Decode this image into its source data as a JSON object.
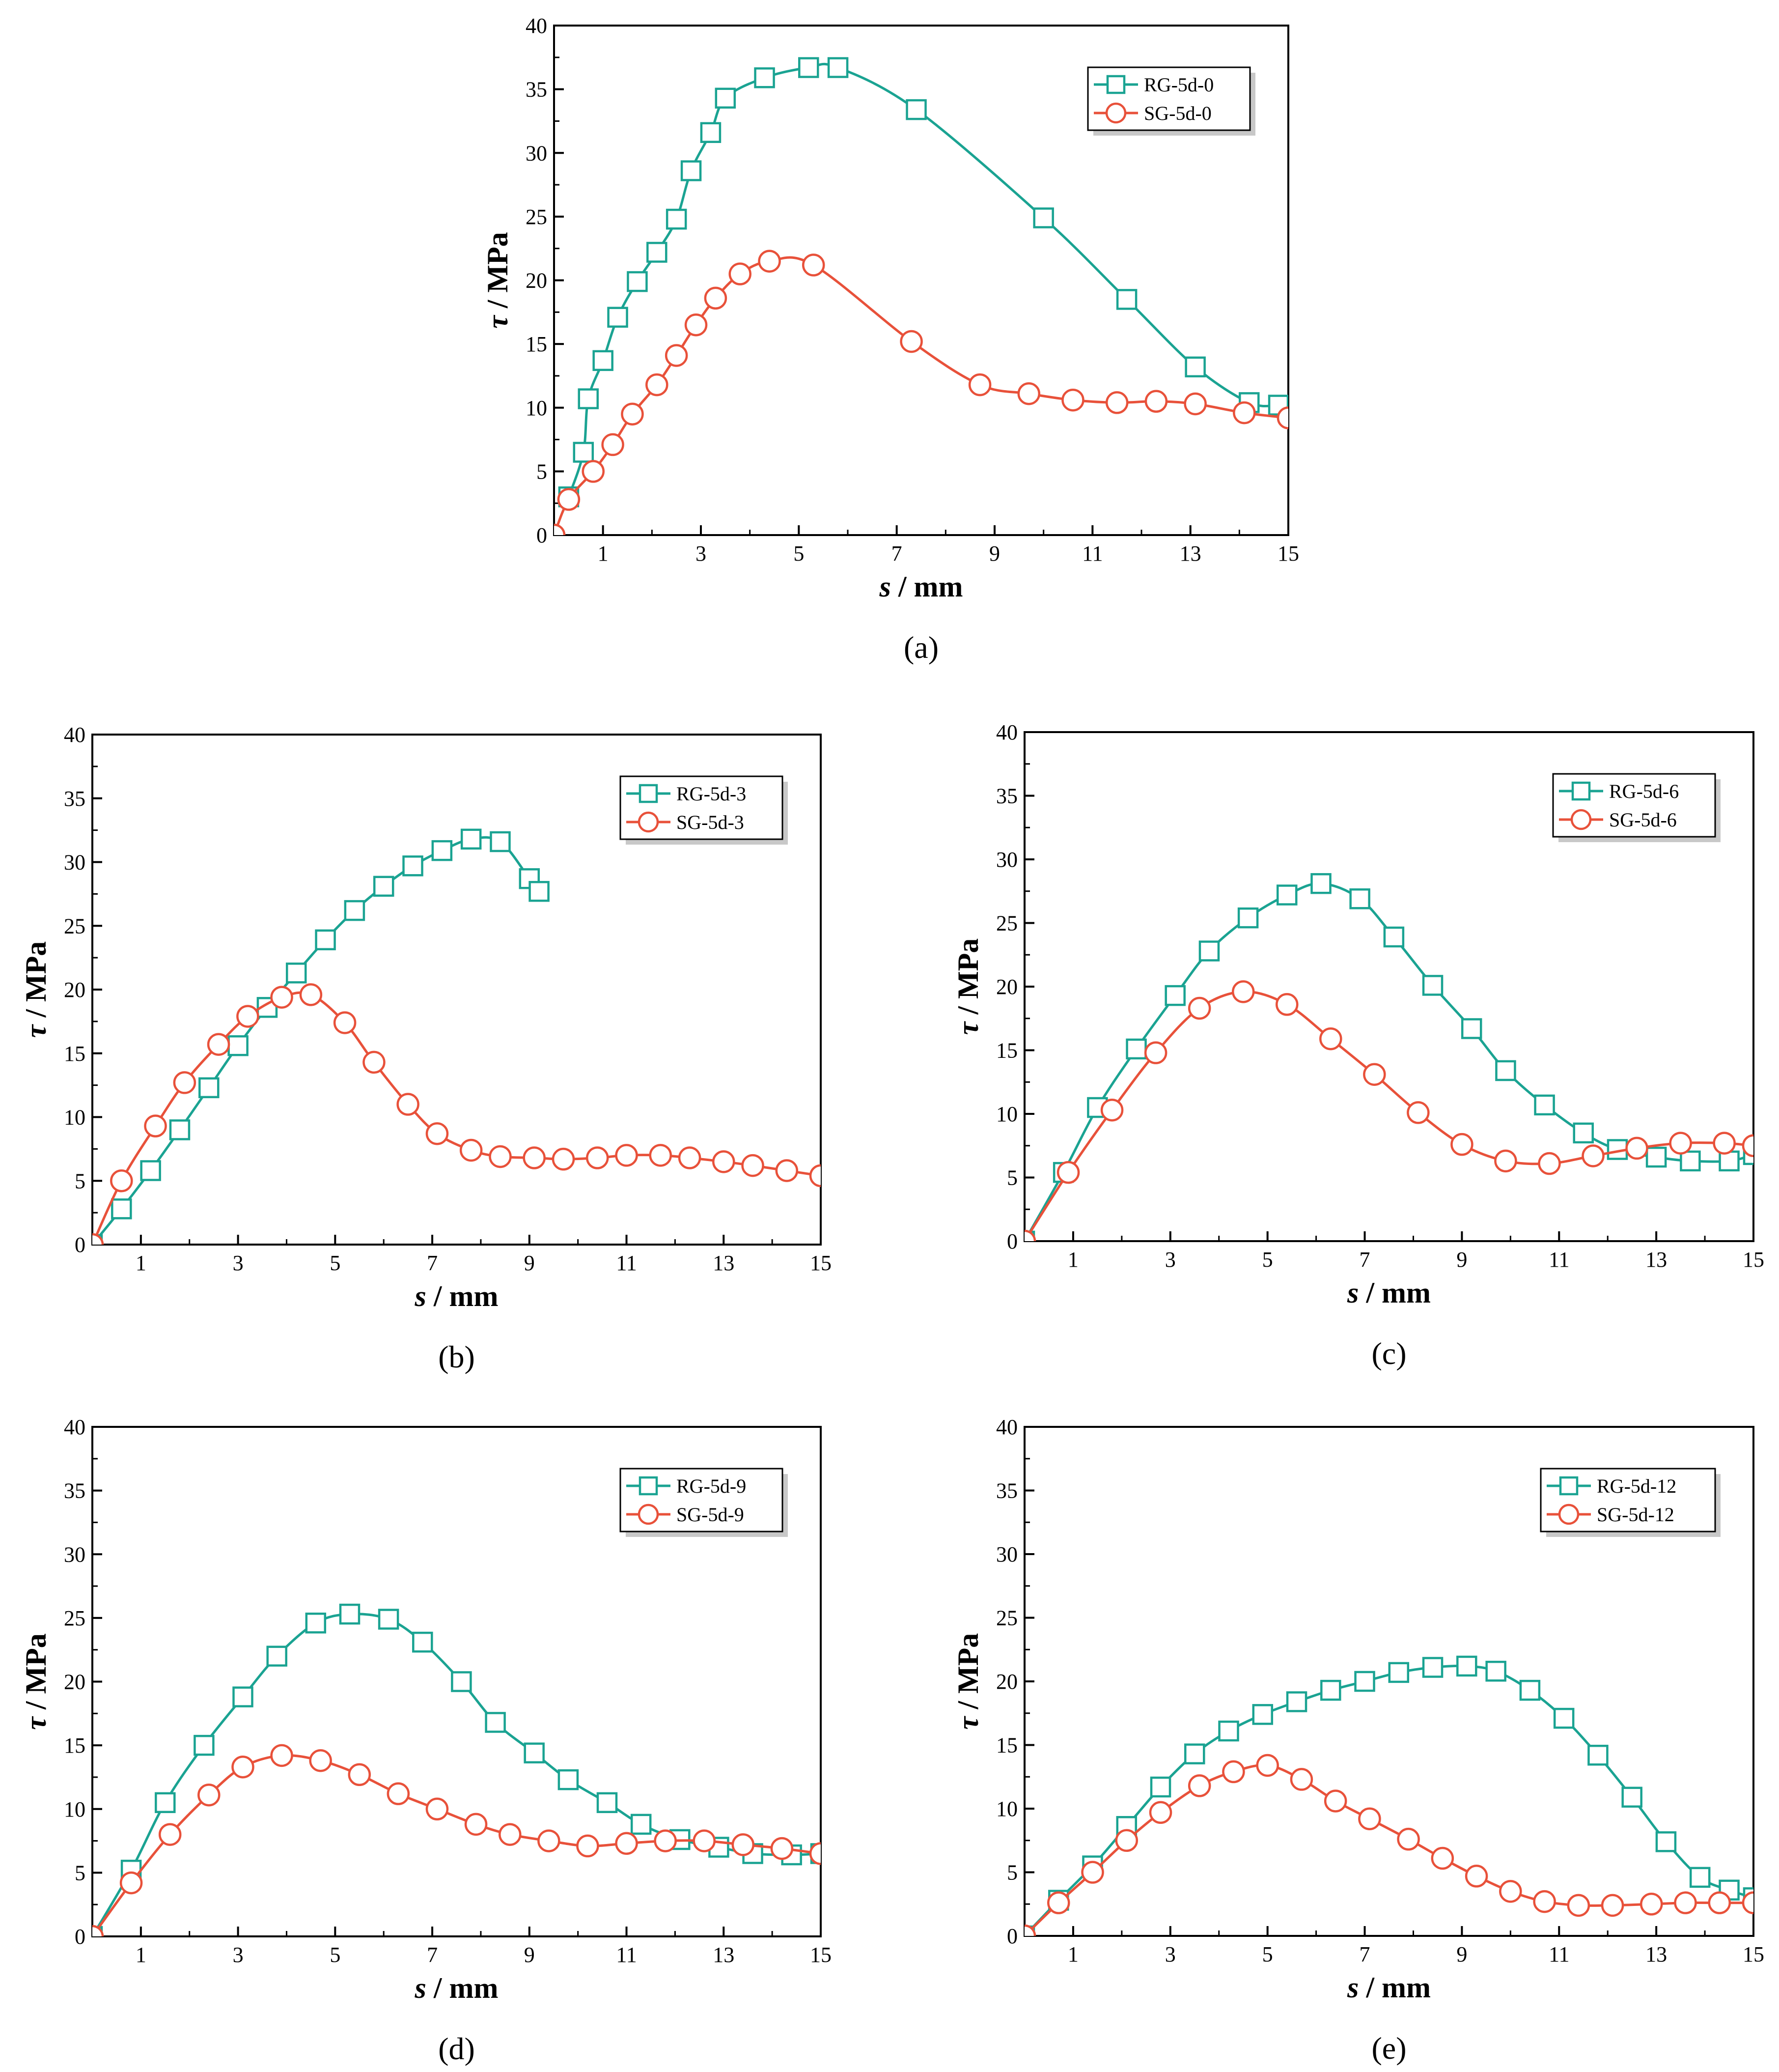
{
  "chart_data": [
    {
      "type": "line",
      "panel_label": "(a)",
      "xlabel": "s / mm",
      "ylabel": "τ / MPa",
      "xlim": [
        0,
        15
      ],
      "ylim": [
        0,
        40
      ],
      "x_ticks": [
        1,
        3,
        5,
        7,
        9,
        11,
        13,
        15
      ],
      "y_ticks": [
        0,
        5,
        10,
        15,
        20,
        25,
        30,
        35,
        40
      ],
      "legend_position": "top-right",
      "series": [
        {
          "name": "RG-5d-0",
          "color": "#1aa392",
          "marker": "square",
          "points": [
            [
              0.3,
              3
            ],
            [
              0.6,
              6.5
            ],
            [
              0.7,
              10.7
            ],
            [
              1,
              13.7
            ],
            [
              1.3,
              17.1
            ],
            [
              1.7,
              19.9
            ],
            [
              2.1,
              22.2
            ],
            [
              2.5,
              24.8
            ],
            [
              2.8,
              28.6
            ],
            [
              3.2,
              31.6
            ],
            [
              3.5,
              34.3
            ],
            [
              4.3,
              35.9
            ],
            [
              5.2,
              36.7
            ],
            [
              5.8,
              36.7
            ],
            [
              7.4,
              33.4
            ],
            [
              10,
              24.9
            ],
            [
              11.7,
              18.5
            ],
            [
              13.1,
              13.2
            ],
            [
              14.2,
              10.4
            ],
            [
              14.8,
              10.2
            ]
          ]
        },
        {
          "name": "SG-5d-0",
          "color": "#e8513a",
          "marker": "circle",
          "points": [
            [
              0,
              0
            ],
            [
              0.3,
              2.8
            ],
            [
              0.8,
              5
            ],
            [
              1.2,
              7.1
            ],
            [
              1.6,
              9.5
            ],
            [
              2.1,
              11.8
            ],
            [
              2.5,
              14.1
            ],
            [
              2.9,
              16.5
            ],
            [
              3.3,
              18.6
            ],
            [
              3.8,
              20.5
            ],
            [
              4.4,
              21.5
            ],
            [
              5.3,
              21.2
            ],
            [
              7.3,
              15.2
            ],
            [
              8.7,
              11.8
            ],
            [
              9.7,
              11.1
            ],
            [
              10.6,
              10.6
            ],
            [
              11.5,
              10.4
            ],
            [
              12.3,
              10.5
            ],
            [
              13.1,
              10.3
            ],
            [
              14.1,
              9.6
            ],
            [
              15,
              9.2
            ]
          ]
        }
      ]
    },
    {
      "type": "line",
      "panel_label": "(b)",
      "xlabel": "s / mm",
      "ylabel": "τ / MPa",
      "xlim": [
        0,
        15
      ],
      "ylim": [
        0,
        40
      ],
      "x_ticks": [
        1,
        3,
        5,
        7,
        9,
        11,
        13,
        15
      ],
      "y_ticks": [
        0,
        5,
        10,
        15,
        20,
        25,
        30,
        35,
        40
      ],
      "legend_position": "top-right",
      "series": [
        {
          "name": "RG-5d-3",
          "color": "#1aa392",
          "marker": "square",
          "points": [
            [
              0,
              0
            ],
            [
              0.6,
              2.8
            ],
            [
              1.2,
              5.8
            ],
            [
              1.8,
              9
            ],
            [
              2.4,
              12.3
            ],
            [
              3,
              15.6
            ],
            [
              3.6,
              18.6
            ],
            [
              4.2,
              21.3
            ],
            [
              4.8,
              23.9
            ],
            [
              5.4,
              26.2
            ],
            [
              6,
              28.1
            ],
            [
              6.6,
              29.7
            ],
            [
              7.2,
              30.9
            ],
            [
              7.8,
              31.8
            ],
            [
              8.4,
              31.6
            ],
            [
              9,
              28.7
            ],
            [
              9.2,
              27.7
            ]
          ]
        },
        {
          "name": "SG-5d-3",
          "color": "#e8513a",
          "marker": "circle",
          "points": [
            [
              0,
              0
            ],
            [
              0.6,
              5
            ],
            [
              1.3,
              9.3
            ],
            [
              1.9,
              12.7
            ],
            [
              2.6,
              15.7
            ],
            [
              3.2,
              17.9
            ],
            [
              3.9,
              19.4
            ],
            [
              4.5,
              19.6
            ],
            [
              5.2,
              17.4
            ],
            [
              5.8,
              14.3
            ],
            [
              6.5,
              11
            ],
            [
              7.1,
              8.7
            ],
            [
              7.8,
              7.4
            ],
            [
              8.4,
              6.9
            ],
            [
              9.1,
              6.8
            ],
            [
              9.7,
              6.7
            ],
            [
              10.4,
              6.8
            ],
            [
              11,
              7
            ],
            [
              11.7,
              7
            ],
            [
              12.3,
              6.8
            ],
            [
              13,
              6.5
            ],
            [
              13.6,
              6.2
            ],
            [
              14.3,
              5.8
            ],
            [
              15,
              5.4
            ]
          ]
        }
      ]
    },
    {
      "type": "line",
      "panel_label": "(c)",
      "xlabel": "s / mm",
      "ylabel": "τ / MPa",
      "xlim": [
        0,
        15
      ],
      "ylim": [
        0,
        40
      ],
      "x_ticks": [
        1,
        3,
        5,
        7,
        9,
        11,
        13,
        15
      ],
      "y_ticks": [
        0,
        5,
        10,
        15,
        20,
        25,
        30,
        35,
        40
      ],
      "legend_position": "top-right",
      "series": [
        {
          "name": "RG-5d-6",
          "color": "#1aa392",
          "marker": "square",
          "points": [
            [
              0,
              0
            ],
            [
              0.8,
              5.4
            ],
            [
              1.5,
              10.5
            ],
            [
              2.3,
              15.1
            ],
            [
              3.1,
              19.3
            ],
            [
              3.8,
              22.8
            ],
            [
              4.6,
              25.4
            ],
            [
              5.4,
              27.2
            ],
            [
              6.1,
              28.1
            ],
            [
              6.9,
              26.9
            ],
            [
              7.6,
              23.9
            ],
            [
              8.4,
              20.1
            ],
            [
              9.2,
              16.7
            ],
            [
              9.9,
              13.4
            ],
            [
              10.7,
              10.7
            ],
            [
              11.5,
              8.5
            ],
            [
              12.2,
              7.2
            ],
            [
              13,
              6.6
            ],
            [
              13.7,
              6.3
            ],
            [
              14.5,
              6.3
            ],
            [
              15,
              6.8
            ]
          ]
        },
        {
          "name": "SG-5d-6",
          "color": "#e8513a",
          "marker": "circle",
          "points": [
            [
              0,
              0
            ],
            [
              0.9,
              5.4
            ],
            [
              1.8,
              10.3
            ],
            [
              2.7,
              14.8
            ],
            [
              3.6,
              18.3
            ],
            [
              4.5,
              19.6
            ],
            [
              5.4,
              18.6
            ],
            [
              6.3,
              15.9
            ],
            [
              7.2,
              13.1
            ],
            [
              8.1,
              10.1
            ],
            [
              9,
              7.6
            ],
            [
              9.9,
              6.3
            ],
            [
              10.8,
              6.1
            ],
            [
              11.7,
              6.7
            ],
            [
              12.6,
              7.3
            ],
            [
              13.5,
              7.7
            ],
            [
              14.4,
              7.7
            ],
            [
              15,
              7.5
            ]
          ]
        }
      ]
    },
    {
      "type": "line",
      "panel_label": "(d)",
      "xlabel": "s / mm",
      "ylabel": "τ / MPa",
      "xlim": [
        0,
        15
      ],
      "ylim": [
        0,
        40
      ],
      "x_ticks": [
        1,
        3,
        5,
        7,
        9,
        11,
        13,
        15
      ],
      "y_ticks": [
        0,
        5,
        10,
        15,
        20,
        25,
        30,
        35,
        40
      ],
      "legend_position": "top-right",
      "series": [
        {
          "name": "RG-5d-9",
          "color": "#1aa392",
          "marker": "square",
          "points": [
            [
              0,
              0
            ],
            [
              0.8,
              5.2
            ],
            [
              1.5,
              10.5
            ],
            [
              2.3,
              15
            ],
            [
              3.1,
              18.8
            ],
            [
              3.8,
              22
            ],
            [
              4.6,
              24.6
            ],
            [
              5.3,
              25.3
            ],
            [
              6.1,
              24.9
            ],
            [
              6.8,
              23.1
            ],
            [
              7.6,
              20
            ],
            [
              8.3,
              16.8
            ],
            [
              9.1,
              14.4
            ],
            [
              9.8,
              12.3
            ],
            [
              10.6,
              10.5
            ],
            [
              11.3,
              8.8
            ],
            [
              12.1,
              7.6
            ],
            [
              12.9,
              7
            ],
            [
              13.6,
              6.5
            ],
            [
              14.4,
              6.4
            ],
            [
              15,
              6.5
            ]
          ]
        },
        {
          "name": "SG-5d-9",
          "color": "#e8513a",
          "marker": "circle",
          "points": [
            [
              0,
              0
            ],
            [
              0.8,
              4.2
            ],
            [
              1.6,
              8
            ],
            [
              2.4,
              11.1
            ],
            [
              3.1,
              13.3
            ],
            [
              3.9,
              14.2
            ],
            [
              4.7,
              13.8
            ],
            [
              5.5,
              12.7
            ],
            [
              6.3,
              11.2
            ],
            [
              7.1,
              10
            ],
            [
              7.9,
              8.8
            ],
            [
              8.6,
              8
            ],
            [
              9.4,
              7.5
            ],
            [
              10.2,
              7.1
            ],
            [
              11,
              7.3
            ],
            [
              11.8,
              7.5
            ],
            [
              12.6,
              7.5
            ],
            [
              13.4,
              7.2
            ],
            [
              14.2,
              6.9
            ],
            [
              15,
              6.5
            ]
          ]
        }
      ]
    },
    {
      "type": "line",
      "panel_label": "(e)",
      "xlabel": "s / mm",
      "ylabel": "τ / MPa",
      "xlim": [
        0,
        15
      ],
      "ylim": [
        0,
        40
      ],
      "x_ticks": [
        1,
        3,
        5,
        7,
        9,
        11,
        13,
        15
      ],
      "y_ticks": [
        0,
        5,
        10,
        15,
        20,
        25,
        30,
        35,
        40
      ],
      "legend_position": "top-right",
      "series": [
        {
          "name": "RG-5d-12",
          "color": "#1aa392",
          "marker": "square",
          "points": [
            [
              0,
              0
            ],
            [
              0.7,
              2.8
            ],
            [
              1.4,
              5.5
            ],
            [
              2.1,
              8.6
            ],
            [
              2.8,
              11.7
            ],
            [
              3.5,
              14.3
            ],
            [
              4.2,
              16.1
            ],
            [
              4.9,
              17.4
            ],
            [
              5.6,
              18.4
            ],
            [
              6.3,
              19.3
            ],
            [
              7,
              20
            ],
            [
              7.7,
              20.7
            ],
            [
              8.4,
              21.1
            ],
            [
              9.1,
              21.2
            ],
            [
              9.7,
              20.8
            ],
            [
              10.4,
              19.3
            ],
            [
              11.1,
              17.1
            ],
            [
              11.8,
              14.2
            ],
            [
              12.5,
              10.9
            ],
            [
              13.2,
              7.4
            ],
            [
              13.9,
              4.6
            ],
            [
              14.5,
              3.6
            ],
            [
              15,
              3
            ]
          ]
        },
        {
          "name": "SG-5d-12",
          "color": "#e8513a",
          "marker": "circle",
          "points": [
            [
              0,
              0
            ],
            [
              0.7,
              2.6
            ],
            [
              1.4,
              5
            ],
            [
              2.1,
              7.5
            ],
            [
              2.8,
              9.7
            ],
            [
              3.6,
              11.8
            ],
            [
              4.3,
              12.9
            ],
            [
              5,
              13.4
            ],
            [
              5.7,
              12.3
            ],
            [
              6.4,
              10.6
            ],
            [
              7.1,
              9.2
            ],
            [
              7.9,
              7.6
            ],
            [
              8.6,
              6.1
            ],
            [
              9.3,
              4.7
            ],
            [
              10,
              3.5
            ],
            [
              10.7,
              2.7
            ],
            [
              11.4,
              2.4
            ],
            [
              12.1,
              2.4
            ],
            [
              12.9,
              2.5
            ],
            [
              13.6,
              2.6
            ],
            [
              14.3,
              2.6
            ],
            [
              15,
              2.6
            ]
          ]
        }
      ]
    }
  ]
}
